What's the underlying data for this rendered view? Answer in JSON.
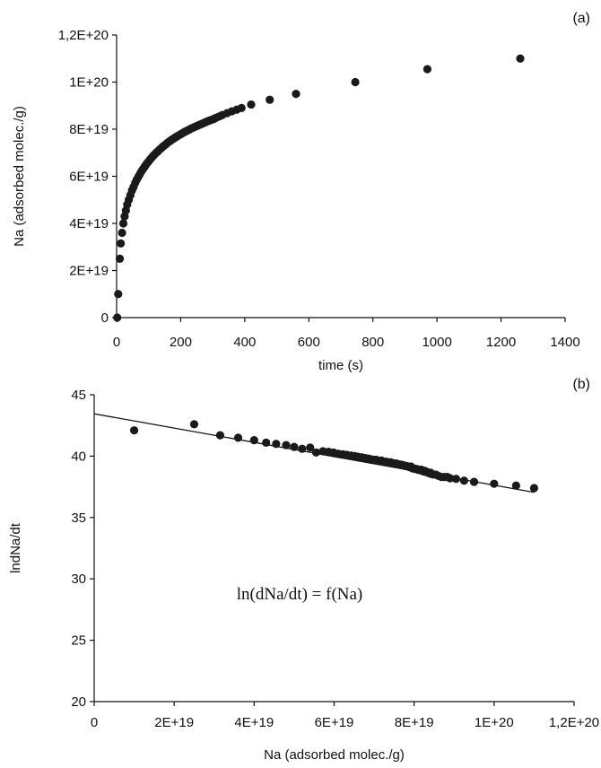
{
  "chart_data": [
    {
      "type": "scatter",
      "panel_label": "(a)",
      "xlabel": "time (s)",
      "ylabel": "Na (adsorbed molec./g)",
      "xlim": [
        0,
        1400
      ],
      "ylim": [
        0,
        1.2e+20
      ],
      "x_ticks": [
        0,
        200,
        400,
        600,
        800,
        1000,
        1200,
        1400
      ],
      "x_tick_labels": [
        "0",
        "200",
        "400",
        "600",
        "800",
        "1000",
        "1200",
        "1400"
      ],
      "y_ticks": [
        0,
        2e+19,
        4e+19,
        6e+19,
        8e+19,
        1e+20,
        1.2e+20
      ],
      "y_tick_labels": [
        "0",
        "2E+19",
        "4E+19",
        "6E+19",
        "8E+19",
        "1E+20",
        "1,2E+20"
      ],
      "grid": false,
      "marker_color": "#1a1a1a",
      "series": [
        {
          "x": [
            2,
            5,
            10,
            13,
            17,
            21,
            25,
            29,
            33,
            38,
            43,
            48,
            53,
            58,
            63,
            68,
            73,
            78,
            83,
            88,
            93,
            98,
            103,
            108,
            113,
            118,
            123,
            128,
            133,
            138,
            143,
            148,
            153,
            158,
            163,
            168,
            173,
            178,
            183,
            188,
            193,
            198,
            203,
            208,
            213,
            218,
            223,
            228,
            233,
            238,
            243,
            248,
            253,
            258,
            263,
            268,
            273,
            278,
            283,
            288,
            293,
            298,
            303,
            310,
            320,
            330,
            345,
            360,
            375,
            390,
            420,
            478,
            560,
            745,
            970,
            1260
          ],
          "y": [
            0,
            1e+19,
            2.5e+19,
            3.15e+19,
            3.6e+19,
            4e+19,
            4.3e+19,
            4.55e+19,
            4.8e+19,
            5e+19,
            5.2e+19,
            5.4e+19,
            5.55e+19,
            5.72e+19,
            5.86e+19,
            5.98e+19,
            6.1e+19,
            6.22e+19,
            6.32e+19,
            6.42e+19,
            6.52e+19,
            6.6e+19,
            6.69e+19,
            6.77e+19,
            6.85e+19,
            6.92e+19,
            6.99e+19,
            7.05e+19,
            7.12e+19,
            7.18e+19,
            7.24e+19,
            7.3e+19,
            7.35e+19,
            7.41e+19,
            7.46e+19,
            7.51e+19,
            7.56e+19,
            7.6e+19,
            7.65e+19,
            7.69e+19,
            7.73e+19,
            7.77e+19,
            7.81e+19,
            7.85e+19,
            7.89e+19,
            7.92e+19,
            7.96e+19,
            7.99e+19,
            8.03e+19,
            8.06e+19,
            8.09e+19,
            8.12e+19,
            8.15e+19,
            8.18e+19,
            8.21e+19,
            8.24e+19,
            8.27e+19,
            8.3e+19,
            8.33e+19,
            8.36e+19,
            8.38e+19,
            8.41e+19,
            8.43e+19,
            8.48e+19,
            8.54e+19,
            8.6e+19,
            8.68e+19,
            8.76e+19,
            8.83e+19,
            8.9e+19,
            9.05e+19,
            9.25e+19,
            9.5e+19,
            1e+20,
            1.055e+20,
            1.1e+20
          ]
        }
      ]
    },
    {
      "type": "scatter",
      "panel_label": "(b)",
      "xlabel": "Na (adsorbed molec./g)",
      "ylabel": "lndNa/dt",
      "xlim": [
        0,
        1.2e+20
      ],
      "ylim": [
        20,
        45
      ],
      "x_ticks": [
        0,
        2e+19,
        4e+19,
        6e+19,
        8e+19,
        1e+20,
        1.2e+20
      ],
      "x_tick_labels": [
        "0",
        "2E+19",
        "4E+19",
        "6E+19",
        "8E+19",
        "1E+20",
        "1,2E+20"
      ],
      "y_ticks": [
        20,
        25,
        30,
        35,
        40,
        45
      ],
      "y_tick_labels": [
        "20",
        "25",
        "30",
        "35",
        "40",
        "45"
      ],
      "grid": false,
      "marker_color": "#1a1a1a",
      "annotation": "ln(dNa/dt) = f(Na)",
      "series": [
        {
          "x": [
            1e+19,
            2.5e+19,
            3.15e+19,
            3.6e+19,
            4e+19,
            4.3e+19,
            4.55e+19,
            4.8e+19,
            5e+19,
            5.2e+19,
            5.4e+19,
            5.55e+19,
            5.72e+19,
            5.86e+19,
            5.98e+19,
            6.1e+19,
            6.22e+19,
            6.32e+19,
            6.42e+19,
            6.52e+19,
            6.6e+19,
            6.69e+19,
            6.77e+19,
            6.85e+19,
            6.92e+19,
            6.99e+19,
            7.05e+19,
            7.12e+19,
            7.18e+19,
            7.24e+19,
            7.3e+19,
            7.35e+19,
            7.41e+19,
            7.46e+19,
            7.51e+19,
            7.56e+19,
            7.6e+19,
            7.65e+19,
            7.69e+19,
            7.73e+19,
            7.77e+19,
            7.81e+19,
            7.85e+19,
            7.89e+19,
            7.92e+19,
            7.96e+19,
            7.99e+19,
            8.03e+19,
            8.06e+19,
            8.09e+19,
            8.12e+19,
            8.15e+19,
            8.18e+19,
            8.21e+19,
            8.24e+19,
            8.27e+19,
            8.3e+19,
            8.33e+19,
            8.36e+19,
            8.38e+19,
            8.41e+19,
            8.43e+19,
            8.48e+19,
            8.54e+19,
            8.6e+19,
            8.68e+19,
            8.76e+19,
            8.83e+19,
            8.9e+19,
            9.05e+19,
            9.25e+19,
            9.5e+19,
            1e+20,
            1.055e+20,
            1.1e+20
          ],
          "y": [
            42.1,
            42.6,
            41.7,
            41.5,
            41.3,
            41.1,
            41.0,
            40.9,
            40.75,
            40.6,
            40.7,
            40.3,
            40.4,
            40.35,
            40.3,
            40.2,
            40.15,
            40.1,
            40.05,
            40.0,
            39.95,
            39.9,
            39.85,
            39.8,
            39.75,
            39.7,
            39.7,
            39.6,
            39.65,
            39.55,
            39.55,
            39.5,
            39.5,
            39.45,
            39.4,
            39.4,
            39.35,
            39.3,
            39.3,
            39.25,
            39.2,
            39.2,
            39.15,
            39.1,
            39.15,
            39.0,
            39.0,
            38.95,
            38.95,
            38.9,
            38.9,
            38.85,
            38.9,
            38.8,
            38.75,
            38.8,
            38.7,
            38.7,
            38.65,
            38.6,
            38.65,
            38.55,
            38.5,
            38.5,
            38.4,
            38.3,
            38.3,
            38.3,
            38.2,
            38.15,
            38.0,
            37.9,
            37.75,
            37.6,
            37.4
          ]
        }
      ],
      "fit_line": {
        "x": [
          0,
          1.1e+20
        ],
        "y": [
          43.45,
          37.05
        ]
      }
    }
  ]
}
